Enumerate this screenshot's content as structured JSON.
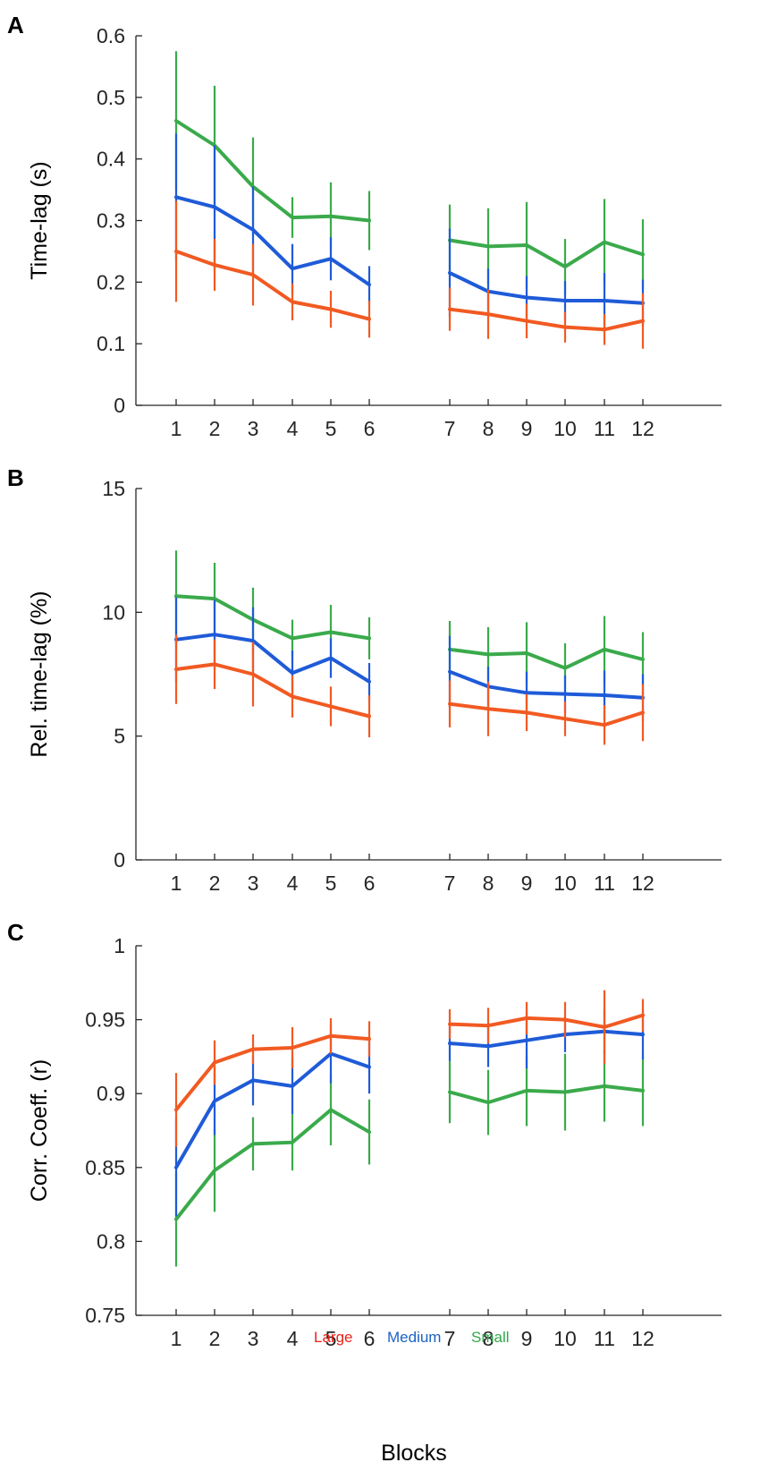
{
  "xlabel": "Blocks",
  "colors": {
    "Large": "#f15a22",
    "Medium": "#1f5bd8",
    "Small": "#3aaa4b"
  },
  "legend": [
    {
      "name": "Large",
      "text_color": "#e8231a"
    },
    {
      "name": "Medium",
      "text_color": "#1b63c4"
    },
    {
      "name": "Small",
      "text_color": "#2fa84a"
    }
  ],
  "chart_data": [
    {
      "type": "line",
      "panel": "A",
      "ylabel": "Time-lag (s)",
      "ylim": [
        0,
        0.6
      ],
      "yticks": [
        "0",
        "0.1",
        "0.2",
        "0.3",
        "0.4",
        "0.5",
        "0.6"
      ],
      "ytick_values": [
        0,
        0.1,
        0.2,
        0.3,
        0.4,
        0.5,
        0.6
      ],
      "categories": [
        "1",
        "2",
        "3",
        "4",
        "5",
        "6",
        "7",
        "8",
        "9",
        "10",
        "11",
        "12"
      ],
      "series": [
        {
          "name": "Large",
          "values": [
            [
              0.25,
              0.228,
              0.212,
              0.168,
              0.156,
              0.14
            ],
            [
              0.156,
              0.148,
              0.137,
              0.127,
              0.123,
              0.137
            ]
          ],
          "errors": [
            [
              0.082,
              0.042,
              0.05,
              0.03,
              0.03,
              0.03
            ],
            [
              0.035,
              0.04,
              0.028,
              0.025,
              0.025,
              0.045
            ]
          ]
        },
        {
          "name": "Medium",
          "values": [
            [
              0.338,
              0.322,
              0.285,
              0.222,
              0.238,
              0.196
            ],
            [
              0.215,
              0.185,
              0.175,
              0.17,
              0.17,
              0.166
            ]
          ],
          "errors": [
            [
              0.103,
              0.1,
              0.07,
              0.04,
              0.035,
              0.03
            ],
            [
              0.072,
              0.037,
              0.035,
              0.032,
              0.045,
              0.038
            ]
          ]
        },
        {
          "name": "Small",
          "values": [
            [
              0.462,
              0.422,
              0.355,
              0.305,
              0.307,
              0.3
            ],
            [
              0.268,
              0.258,
              0.26,
              0.225,
              0.265,
              0.245
            ]
          ],
          "errors": [
            [
              0.113,
              0.097,
              0.08,
              0.033,
              0.055,
              0.048
            ],
            [
              0.058,
              0.062,
              0.07,
              0.045,
              0.07,
              0.057
            ]
          ]
        }
      ]
    },
    {
      "type": "line",
      "panel": "B",
      "ylabel": "Rel. time-lag (%)",
      "ylim": [
        0,
        15
      ],
      "yticks": [
        "0",
        "5",
        "10",
        "15"
      ],
      "ytick_values": [
        0,
        5,
        10,
        15
      ],
      "categories": [
        "1",
        "2",
        "3",
        "4",
        "5",
        "6",
        "7",
        "8",
        "9",
        "10",
        "11",
        "12"
      ],
      "series": [
        {
          "name": "Large",
          "values": [
            [
              7.7,
              7.9,
              7.5,
              6.6,
              6.2,
              5.8
            ],
            [
              6.3,
              6.1,
              5.95,
              5.7,
              5.45,
              5.95
            ]
          ],
          "errors": [
            [
              1.4,
              1.0,
              1.3,
              0.85,
              0.8,
              0.85
            ],
            [
              0.95,
              1.1,
              0.75,
              0.7,
              0.8,
              1.15
            ]
          ]
        },
        {
          "name": "Medium",
          "values": [
            [
              8.9,
              9.1,
              8.85,
              7.55,
              8.15,
              7.2
            ],
            [
              7.6,
              7.0,
              6.75,
              6.7,
              6.65,
              6.55
            ]
          ],
          "errors": [
            [
              1.7,
              1.4,
              1.35,
              0.9,
              0.8,
              0.75
            ],
            [
              1.45,
              0.8,
              0.85,
              0.75,
              1.0,
              0.95
            ]
          ]
        },
        {
          "name": "Small",
          "values": [
            [
              10.65,
              10.55,
              9.7,
              8.95,
              9.2,
              8.95
            ],
            [
              8.5,
              8.3,
              8.35,
              7.75,
              8.5,
              8.1
            ]
          ],
          "errors": [
            [
              1.85,
              1.45,
              1.3,
              0.75,
              1.1,
              0.85
            ],
            [
              1.15,
              1.1,
              1.25,
              1.0,
              1.35,
              1.1
            ]
          ]
        }
      ]
    },
    {
      "type": "line",
      "panel": "C",
      "ylabel": "Corr. Coeff. (r)",
      "ylim": [
        0.75,
        1
      ],
      "yticks": [
        "0.75",
        "0.8",
        "0.85",
        "0.9",
        "0.95",
        "1"
      ],
      "ytick_values": [
        0.75,
        0.8,
        0.85,
        0.9,
        0.95,
        1
      ],
      "categories": [
        "1",
        "2",
        "3",
        "4",
        "5",
        "6",
        "7",
        "8",
        "9",
        "10",
        "11",
        "12"
      ],
      "series": [
        {
          "name": "Large",
          "values": [
            [
              0.889,
              0.921,
              0.93,
              0.931,
              0.939,
              0.937
            ],
            [
              0.947,
              0.946,
              0.951,
              0.95,
              0.945,
              0.953
            ]
          ],
          "errors": [
            [
              0.025,
              0.015,
              0.01,
              0.014,
              0.012,
              0.012
            ],
            [
              0.01,
              0.012,
              0.011,
              0.012,
              0.025,
              0.011
            ]
          ]
        },
        {
          "name": "Medium",
          "values": [
            [
              0.85,
              0.895,
              0.909,
              0.905,
              0.927,
              0.918
            ],
            [
              0.934,
              0.932,
              0.936,
              0.94,
              0.942,
              0.94
            ]
          ],
          "errors": [
            [
              0.033,
              0.023,
              0.017,
              0.019,
              0.02,
              0.018
            ],
            [
              0.012,
              0.014,
              0.019,
              0.012,
              0.015,
              0.017
            ]
          ]
        },
        {
          "name": "Small",
          "values": [
            [
              0.815,
              0.848,
              0.866,
              0.867,
              0.889,
              0.874
            ],
            [
              0.901,
              0.894,
              0.902,
              0.901,
              0.905,
              0.902
            ]
          ],
          "errors": [
            [
              0.032,
              0.028,
              0.018,
              0.019,
              0.024,
              0.022
            ],
            [
              0.021,
              0.022,
              0.024,
              0.026,
              0.024,
              0.024
            ]
          ]
        }
      ]
    }
  ]
}
